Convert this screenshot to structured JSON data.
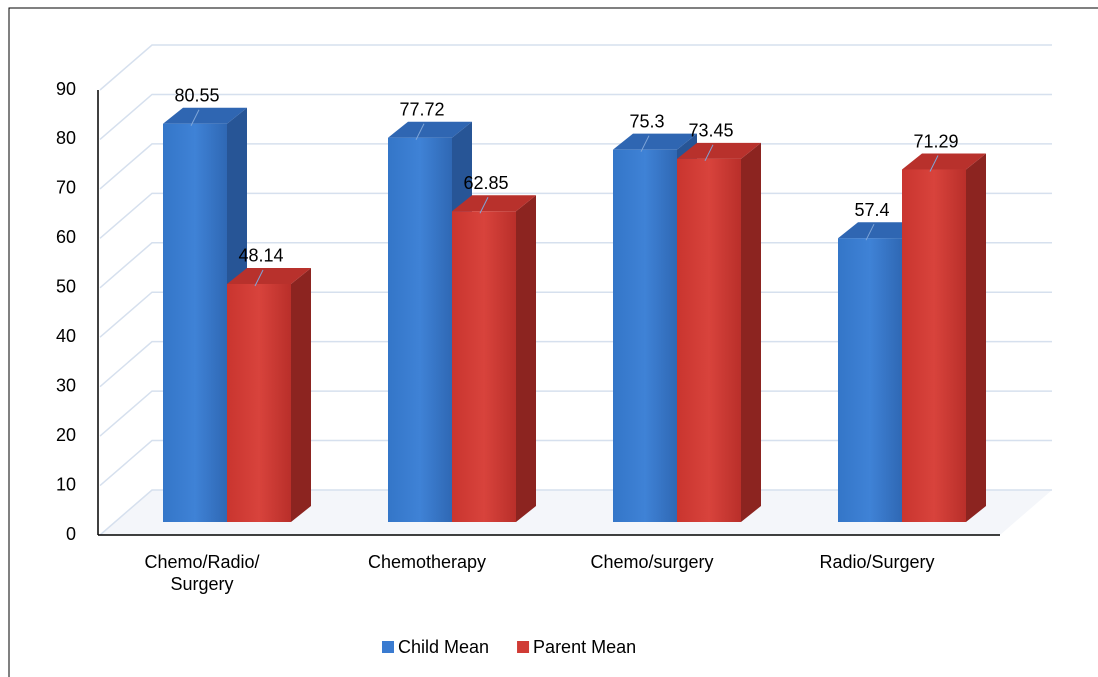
{
  "chart_data": {
    "type": "bar3d",
    "categories": [
      "Chemo/Radio/ Surgery",
      "Chemotherapy",
      "Chemo/surgery",
      "Radio/Surgery"
    ],
    "series": [
      {
        "name": "Child Mean",
        "color": "#3a7bd0",
        "values": [
          80.55,
          77.72,
          75.3,
          57.4
        ]
      },
      {
        "name": "Parent Mean",
        "color": "#d03b35",
        "values": [
          48.14,
          62.85,
          73.45,
          71.29
        ]
      }
    ],
    "ylim": [
      0,
      90
    ],
    "yticks": [
      0,
      10,
      20,
      30,
      40,
      50,
      60,
      70,
      80,
      90
    ],
    "grid": true,
    "legend": "bottom"
  }
}
